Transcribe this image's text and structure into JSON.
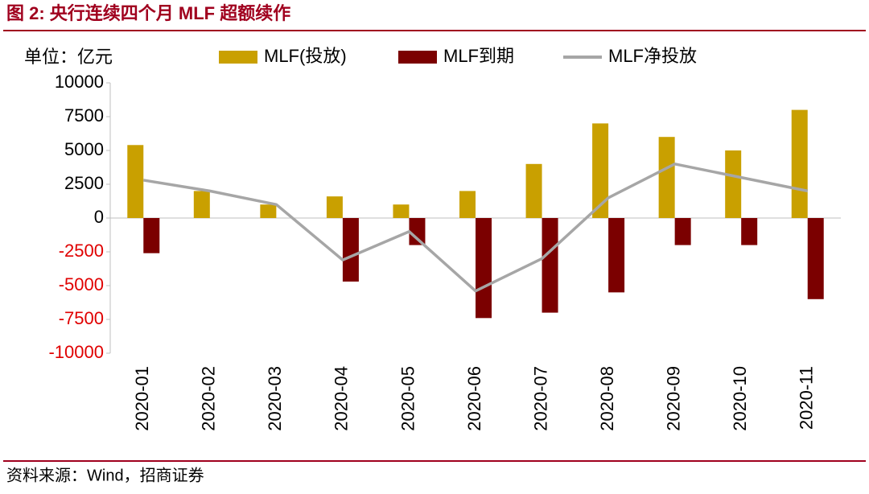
{
  "chart_data": {
    "type": "bar-line",
    "title": "图 2:  央行连续四个月 MLF 超额续作",
    "unit_label": "单位：亿元",
    "source": "资料来源：Wind，招商证券",
    "categories": [
      "2020-01",
      "2020-02",
      "2020-03",
      "2020-04",
      "2020-05",
      "2020-06",
      "2020-07",
      "2020-08",
      "2020-09",
      "2020-10",
      "2020-11"
    ],
    "series": [
      {
        "name": "MLF(投放)",
        "type": "bar",
        "color": "#c9a000",
        "values": [
          5400,
          2000,
          1000,
          1600,
          1000,
          2000,
          4000,
          7000,
          6000,
          5000,
          8000
        ]
      },
      {
        "name": "MLF到期",
        "type": "bar",
        "color": "#7b0000",
        "values": [
          -2600,
          0,
          0,
          -4700,
          -2000,
          -7400,
          -7000,
          -5500,
          -2000,
          -2000,
          -6000
        ]
      },
      {
        "name": "MLF净投放",
        "type": "line",
        "color": "#a6a6a6",
        "values": [
          2800,
          2000,
          1000,
          -3100,
          -1000,
          -5400,
          -3000,
          1500,
          4000,
          3000,
          2000
        ]
      }
    ],
    "ylim": [
      -10000,
      10000
    ],
    "yticks": [
      -10000,
      -7500,
      -5000,
      -2500,
      0,
      2500,
      5000,
      7500,
      10000
    ],
    "negative_tick_color": "#e00000"
  }
}
